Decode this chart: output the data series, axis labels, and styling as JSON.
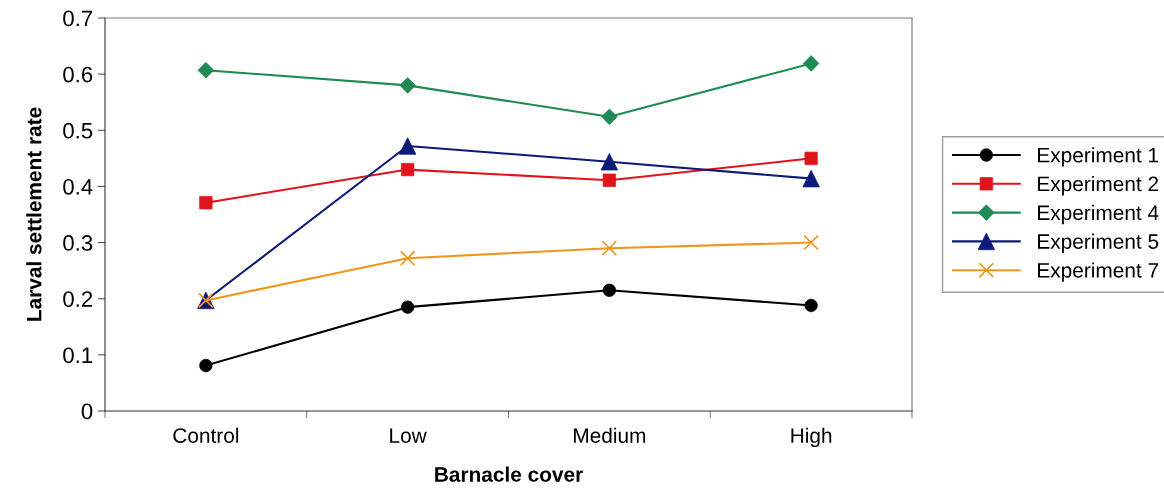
{
  "chart_data": {
    "type": "line",
    "xlabel": "Barnacle cover",
    "ylabel": "Larval settlement rate",
    "categories": [
      "Control",
      "Low",
      "Medium",
      "High"
    ],
    "series": [
      {
        "name": "Experiment 1",
        "color": "#000000",
        "marker": "circle",
        "values": [
          0.081,
          0.185,
          0.215,
          0.188
        ]
      },
      {
        "name": "Experiment 2",
        "color": "#e0141c",
        "marker": "square",
        "values": [
          0.371,
          0.43,
          0.411,
          0.45
        ]
      },
      {
        "name": "Experiment 4",
        "color": "#1f8a55",
        "marker": "diamond",
        "values": [
          0.607,
          0.58,
          0.524,
          0.619
        ]
      },
      {
        "name": "Experiment 5",
        "color": "#0d1a78",
        "marker": "triangle",
        "values": [
          0.197,
          0.472,
          0.444,
          0.414
        ]
      },
      {
        "name": "Experiment 7",
        "color": "#f0961e",
        "marker": "cross",
        "values": [
          0.197,
          0.272,
          0.29,
          0.3
        ]
      }
    ],
    "ylim": [
      0,
      0.7
    ],
    "yticks": [
      0,
      0.1,
      0.2,
      0.3,
      0.4,
      0.5,
      0.6,
      0.7
    ],
    "grid": false,
    "legend": "right"
  }
}
